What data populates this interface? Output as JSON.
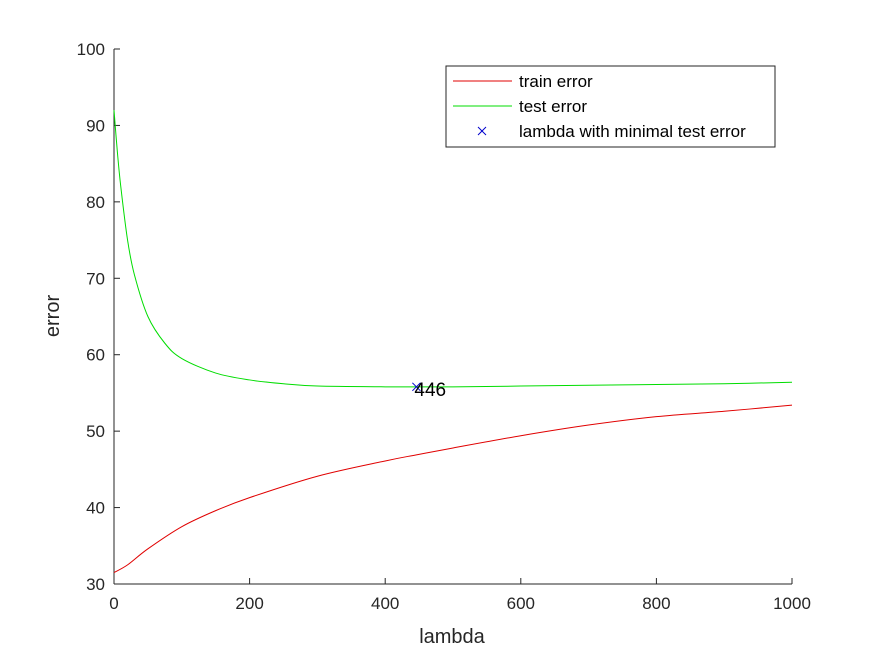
{
  "chart_data": {
    "type": "line",
    "xlabel": "lambda",
    "ylabel": "error",
    "xlim": [
      0,
      1000
    ],
    "ylim": [
      30,
      100
    ],
    "xticks": [
      0,
      200,
      400,
      600,
      800,
      1000
    ],
    "yticks": [
      30,
      40,
      50,
      60,
      70,
      80,
      90,
      100
    ],
    "grid": false,
    "legend_position": "top-right",
    "series": [
      {
        "name": "train error",
        "color": "#e00000",
        "x": [
          0,
          20,
          50,
          100,
          150,
          200,
          300,
          400,
          446,
          500,
          600,
          700,
          800,
          900,
          1000
        ],
        "y": [
          31.5,
          32.5,
          34.6,
          37.5,
          39.6,
          41.3,
          44.1,
          46.1,
          46.9,
          47.8,
          49.4,
          50.8,
          51.9,
          52.6,
          53.4
        ]
      },
      {
        "name": "test error",
        "color": "#00dd00",
        "x": [
          0,
          5,
          10,
          20,
          30,
          50,
          75,
          100,
          150,
          200,
          250,
          300,
          400,
          446,
          500,
          600,
          700,
          800,
          900,
          1000
        ],
        "y": [
          92.0,
          86.5,
          82.0,
          75.0,
          70.5,
          65.0,
          61.5,
          59.5,
          57.6,
          56.7,
          56.2,
          55.9,
          55.8,
          55.8,
          55.8,
          55.9,
          56.0,
          56.1,
          56.2,
          56.4
        ]
      }
    ],
    "markers": [
      {
        "name": "lambda with minimal test error",
        "color": "#0000cc",
        "symbol": "x",
        "x": 446,
        "y": 55.8,
        "label": "446"
      }
    ]
  }
}
